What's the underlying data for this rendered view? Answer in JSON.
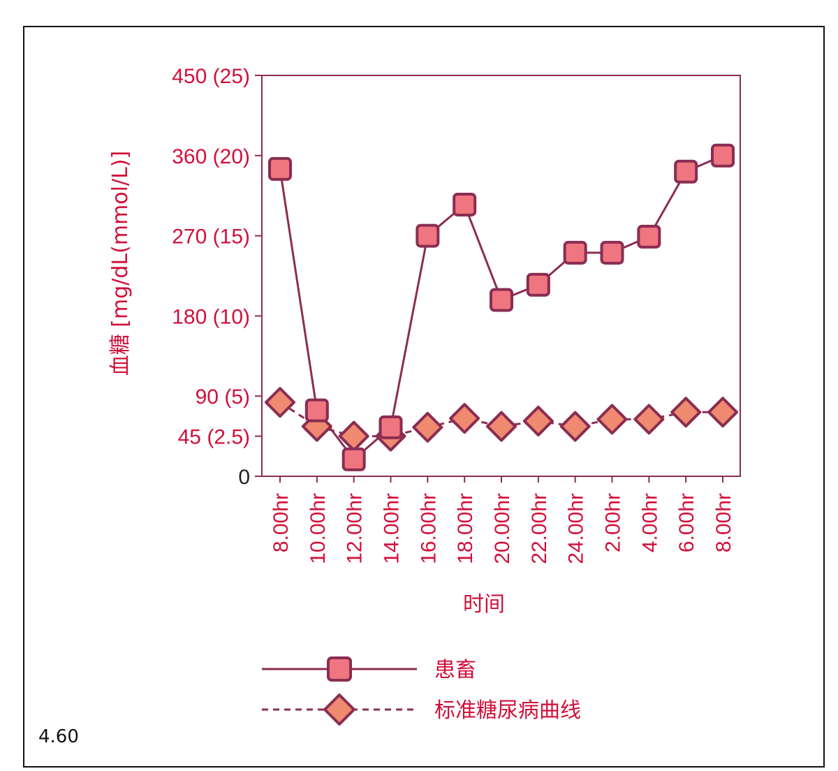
{
  "figure_number": "4.60",
  "colors": {
    "red_text": "#d0103a",
    "axis": "#8a2d52",
    "patient_line": "#8a2d52",
    "patient_fill": "#ef7580",
    "patient_stroke": "#8a2d52",
    "reference_fill": "#ef8a70",
    "reference_stroke": "#8a2d52",
    "zero_label": "#222222"
  },
  "chart_data": {
    "type": "line",
    "title": "",
    "xlabel": "时间",
    "ylabel": "血糖 [mg/dL(mmol/L)]",
    "ylim": [
      0,
      450
    ],
    "yticks": [
      {
        "value": 0,
        "label": "0"
      },
      {
        "value": 45,
        "label": "45 (2.5)"
      },
      {
        "value": 90,
        "label": "90 (5)"
      },
      {
        "value": 180,
        "label": "180 (10)"
      },
      {
        "value": 270,
        "label": "270 (15)"
      },
      {
        "value": 360,
        "label": "360 (20)"
      },
      {
        "value": 450,
        "label": "450 (25)"
      }
    ],
    "categories": [
      "8.00hr",
      "10.00hr",
      "12.00hr",
      "14.00hr",
      "16.00hr",
      "18.00hr",
      "20.00hr",
      "22.00hr",
      "24.00hr",
      "2.00hr",
      "4.00hr",
      "6.00hr",
      "8.00hr"
    ],
    "series": [
      {
        "name": "患畜",
        "marker": "square",
        "line": "solid",
        "values": [
          345,
          74,
          19,
          55,
          270,
          305,
          198,
          215,
          251,
          251,
          269,
          342,
          360
        ]
      },
      {
        "name": "标准糖尿病曲线",
        "marker": "diamond",
        "line": "dashed",
        "values": [
          83,
          56,
          45,
          45,
          55,
          65,
          56,
          62,
          56,
          64,
          64,
          72,
          72
        ]
      }
    ],
    "legend": "bottom",
    "grid": false
  }
}
